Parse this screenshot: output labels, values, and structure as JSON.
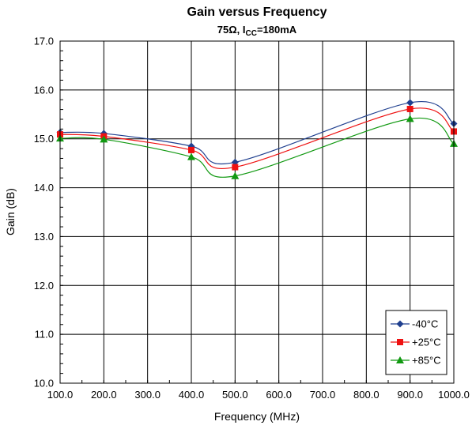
{
  "chart_data": {
    "type": "line",
    "title": "Gain versus Frequency",
    "subtitle": {
      "prefix": "75Ω, I",
      "subscript": "CC",
      "suffix": "=180mA"
    },
    "xlabel": "Frequency (MHz)",
    "ylabel": "Gain (dB)",
    "xlim": [
      100,
      1000
    ],
    "ylim": [
      10,
      17
    ],
    "x_ticks": [
      "100.0",
      "200.0",
      "300.0",
      "400.0",
      "500.0",
      "600.0",
      "700.0",
      "800.0",
      "900.0",
      "1000.0"
    ],
    "y_ticks": [
      "10.0",
      "11.0",
      "12.0",
      "13.0",
      "14.0",
      "15.0",
      "16.0",
      "17.0"
    ],
    "grid": true,
    "legend_position": "bottom-right",
    "x": [
      100,
      200,
      400,
      500,
      900,
      1000
    ],
    "series": [
      {
        "name": "-40°C",
        "color": "#1f3f8f",
        "marker": "diamond",
        "values": [
          15.13,
          15.11,
          14.85,
          14.52,
          15.74,
          15.31
        ]
      },
      {
        "name": "+25°C",
        "color": "#ee1111",
        "marker": "square",
        "values": [
          15.09,
          15.05,
          14.77,
          14.42,
          15.61,
          15.15
        ]
      },
      {
        "name": "+85°C",
        "color": "#119911",
        "marker": "triangle",
        "values": [
          15.01,
          14.99,
          14.63,
          14.24,
          15.41,
          14.9
        ]
      }
    ]
  }
}
